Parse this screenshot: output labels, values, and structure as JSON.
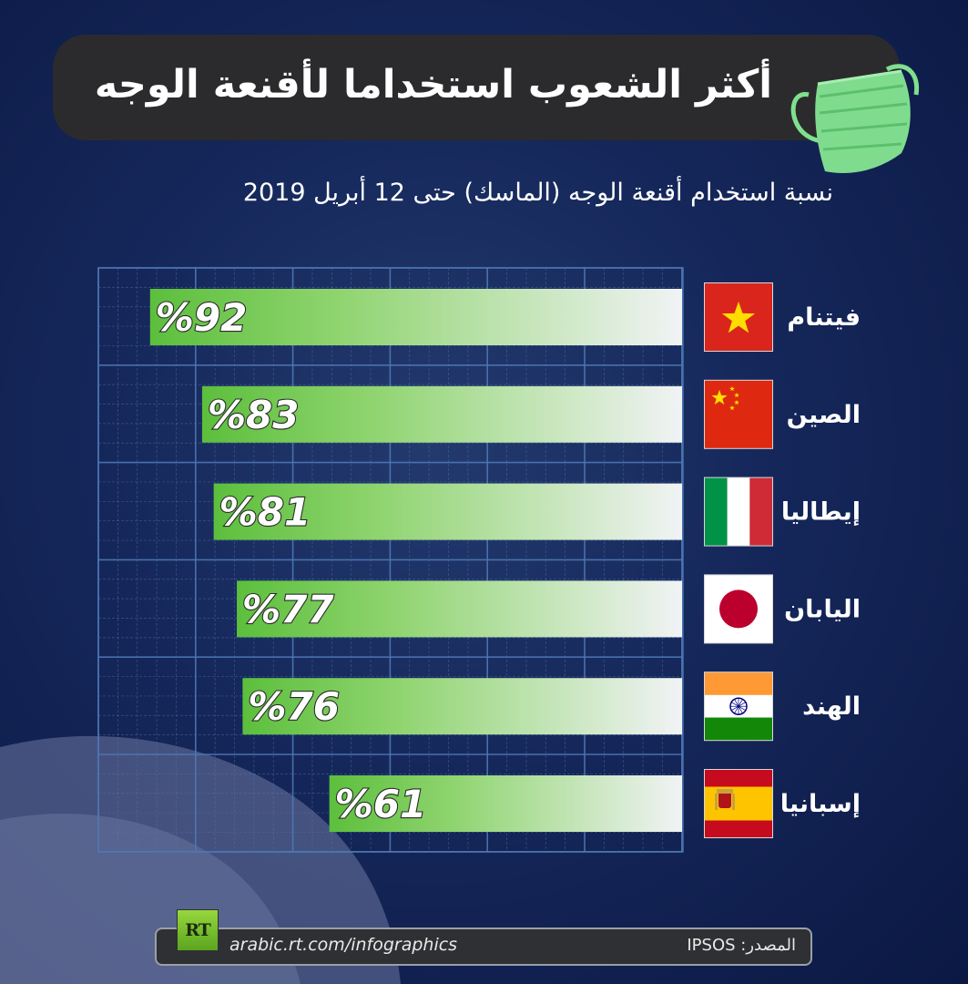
{
  "title": "أكثر الشعوب استخداما لأقنعة الوجه",
  "subtitle": "نسبة استخدام أقنعة الوجه (الماسك) حتى 12 أبريل 2019",
  "footer": {
    "logo_text": "RT",
    "url": "arabic.rt.com/infographics",
    "source_label": "المصدر:",
    "source_value": "IPSOS"
  },
  "colors": {
    "bar_green": "#5cbf3c",
    "bar_light": "#f1f3f5",
    "grid": "#4d78b4",
    "background": "#15275a"
  },
  "chart_data": {
    "type": "bar",
    "orientation": "horizontal",
    "categories": [
      "فيتنام",
      "الصين",
      "إيطاليا",
      "اليابان",
      "الهند",
      "إسبانيا"
    ],
    "values": [
      92,
      83,
      81,
      77,
      76,
      61
    ],
    "value_labels": [
      "%92",
      "%83",
      "%81",
      "%77",
      "%76",
      "%61"
    ],
    "flags": [
      "vietnam-flag",
      "china-flag",
      "italy-flag",
      "japan-flag",
      "india-flag",
      "spain-flag"
    ],
    "unit": "%",
    "xlim": [
      0,
      100
    ],
    "bar_direction": "right-to-left",
    "grid": true
  }
}
